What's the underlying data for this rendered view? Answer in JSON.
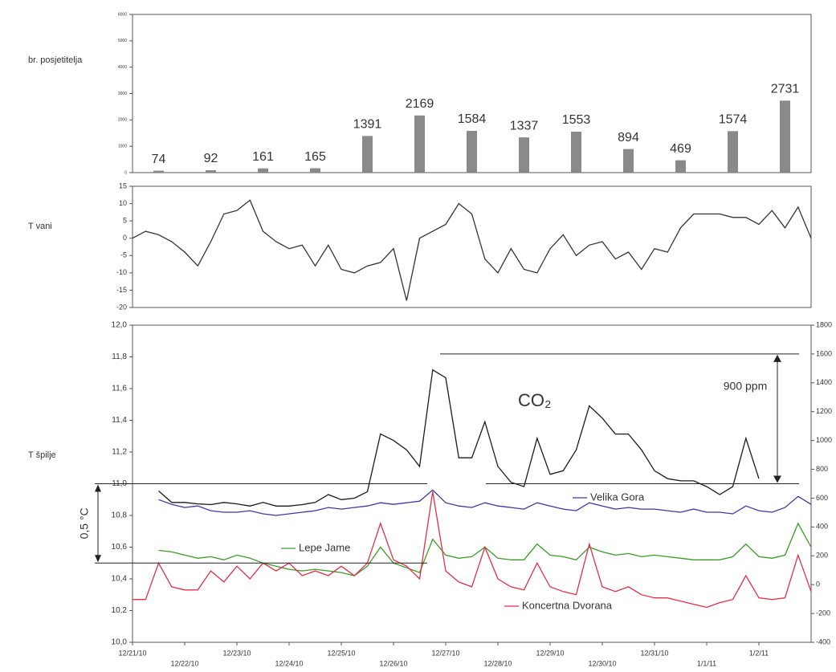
{
  "chart_data": [
    {
      "type": "bar",
      "ylabel": "br. posjetitelja",
      "color": "#8a8a8a",
      "x": [
        "2010-12-21T12:00",
        "2010-12-22T12:00",
        "2010-12-23T12:00",
        "2010-12-24T12:00",
        "2010-12-25T12:00",
        "2010-12-26T12:00",
        "2010-12-27T12:00",
        "2010-12-28T12:00",
        "2010-12-29T12:00",
        "2010-12-30T12:00",
        "2010-12-31T12:00",
        "2011-01-01T12:00",
        "2011-01-02T12:00"
      ],
      "values": [
        74,
        92,
        161,
        165,
        1391,
        2169,
        1584,
        1337,
        1553,
        894,
        469,
        1574,
        2731
      ],
      "xlim": [
        "2010-12-21T00:00",
        "2011-01-03T00:00"
      ],
      "ylim": [
        0,
        6000
      ],
      "yticks": [
        0,
        1000,
        2000,
        3000,
        4000,
        5000,
        6000
      ]
    },
    {
      "type": "line",
      "ylabel": "T vani",
      "x": [
        "2010-12-21T00:00",
        "2010-12-21T06:00",
        "2010-12-21T12:00",
        "2010-12-21T18:00",
        "2010-12-22T00:00",
        "2010-12-22T06:00",
        "2010-12-22T12:00",
        "2010-12-22T18:00",
        "2010-12-23T00:00",
        "2010-12-23T06:00",
        "2010-12-23T12:00",
        "2010-12-23T18:00",
        "2010-12-24T00:00",
        "2010-12-24T06:00",
        "2010-12-24T12:00",
        "2010-12-24T18:00",
        "2010-12-25T00:00",
        "2010-12-25T06:00",
        "2010-12-25T12:00",
        "2010-12-25T18:00",
        "2010-12-26T00:00",
        "2010-12-26T06:00",
        "2010-12-26T12:00",
        "2010-12-26T18:00",
        "2010-12-27T00:00",
        "2010-12-27T06:00",
        "2010-12-27T12:00",
        "2010-12-27T18:00",
        "2010-12-28T00:00",
        "2010-12-28T06:00",
        "2010-12-28T12:00",
        "2010-12-28T18:00",
        "2010-12-29T00:00",
        "2010-12-29T06:00",
        "2010-12-29T12:00",
        "2010-12-29T18:00",
        "2010-12-30T00:00",
        "2010-12-30T06:00",
        "2010-12-30T12:00",
        "2010-12-30T18:00",
        "2010-12-31T00:00",
        "2010-12-31T06:00",
        "2010-12-31T12:00",
        "2010-12-31T18:00",
        "2011-01-01T00:00",
        "2011-01-01T06:00",
        "2011-01-01T12:00",
        "2011-01-01T18:00",
        "2011-01-02T00:00",
        "2011-01-02T06:00",
        "2011-01-02T12:00",
        "2011-01-02T18:00",
        "2011-01-03T00:00"
      ],
      "series": [
        {
          "color": "#333333",
          "values": [
            0,
            2,
            1,
            -1,
            -4,
            -8,
            -1,
            7,
            8,
            11,
            2,
            -1,
            -3,
            -2,
            -8,
            -2,
            -9,
            -10,
            -8,
            -7,
            -3,
            -18,
            0,
            2,
            4,
            10,
            7,
            -6,
            -10,
            -3,
            -9,
            -10,
            -3,
            1,
            -5,
            -2,
            -1,
            -6,
            -4,
            -9,
            -3,
            -4,
            3,
            7,
            7,
            7,
            6,
            6,
            4,
            8,
            3,
            9,
            0
          ]
        }
      ],
      "xlim": [
        "2010-12-21T00:00",
        "2011-01-03T00:00"
      ],
      "ylim": [
        -20,
        15
      ],
      "yticks": [
        -20,
        -15,
        -10,
        -5,
        0,
        5,
        10,
        15
      ]
    },
    {
      "type": "line",
      "ylabel": "T špilje",
      "x": [
        "2010-12-21T00:00",
        "2010-12-21T06:00",
        "2010-12-21T12:00",
        "2010-12-21T18:00",
        "2010-12-22T00:00",
        "2010-12-22T06:00",
        "2010-12-22T12:00",
        "2010-12-22T18:00",
        "2010-12-23T00:00",
        "2010-12-23T06:00",
        "2010-12-23T12:00",
        "2010-12-23T18:00",
        "2010-12-24T00:00",
        "2010-12-24T06:00",
        "2010-12-24T12:00",
        "2010-12-24T18:00",
        "2010-12-25T00:00",
        "2010-12-25T06:00",
        "2010-12-25T12:00",
        "2010-12-25T18:00",
        "2010-12-26T00:00",
        "2010-12-26T06:00",
        "2010-12-26T12:00",
        "2010-12-26T18:00",
        "2010-12-27T00:00",
        "2010-12-27T06:00",
        "2010-12-27T12:00",
        "2010-12-27T18:00",
        "2010-12-28T00:00",
        "2010-12-28T06:00",
        "2010-12-28T12:00",
        "2010-12-28T18:00",
        "2010-12-29T00:00",
        "2010-12-29T06:00",
        "2010-12-29T12:00",
        "2010-12-29T18:00",
        "2010-12-30T00:00",
        "2010-12-30T06:00",
        "2010-12-30T12:00",
        "2010-12-30T18:00",
        "2010-12-31T00:00",
        "2010-12-31T06:00",
        "2010-12-31T12:00",
        "2010-12-31T18:00",
        "2011-01-01T00:00",
        "2011-01-01T06:00",
        "2011-01-01T12:00",
        "2011-01-01T18:00",
        "2011-01-02T00:00",
        "2011-01-02T06:00",
        "2011-01-02T12:00",
        "2011-01-02T18:00",
        "2011-01-03T00:00"
      ],
      "series": [
        {
          "name": "CO₂",
          "color": "#1a1a1a",
          "axis": "y2",
          "values": [
            null,
            null,
            650,
            570,
            570,
            560,
            555,
            570,
            560,
            545,
            570,
            545,
            545,
            555,
            570,
            625,
            590,
            600,
            645,
            1045,
            1000,
            935,
            820,
            1490,
            1435,
            880,
            880,
            1130,
            820,
            710,
            680,
            1015,
            765,
            790,
            935,
            1240,
            1155,
            1045,
            1045,
            935,
            790,
            735,
            720,
            720,
            680,
            625,
            680,
            1015,
            735,
            null,
            null,
            null,
            null
          ]
        },
        {
          "name": "Velika Gora",
          "color": "#3a3aa0",
          "values": [
            null,
            null,
            10.9,
            10.87,
            10.85,
            10.86,
            10.83,
            10.82,
            10.82,
            10.83,
            10.81,
            10.8,
            10.81,
            10.82,
            10.83,
            10.85,
            10.84,
            10.85,
            10.86,
            10.88,
            10.87,
            10.88,
            10.89,
            10.96,
            10.88,
            10.86,
            10.85,
            10.88,
            10.86,
            10.85,
            10.84,
            10.88,
            10.86,
            10.84,
            10.83,
            10.88,
            10.86,
            10.84,
            10.85,
            10.84,
            10.84,
            10.83,
            10.82,
            10.84,
            10.82,
            10.82,
            10.81,
            10.86,
            10.83,
            10.82,
            10.85,
            10.92,
            10.87
          ]
        },
        {
          "name": "Lepe Jame",
          "color": "#3c9a2a",
          "values": [
            null,
            null,
            10.58,
            10.57,
            10.55,
            10.53,
            10.54,
            10.52,
            10.55,
            10.53,
            10.5,
            10.48,
            10.46,
            10.45,
            10.46,
            10.45,
            10.44,
            10.42,
            10.48,
            10.6,
            10.5,
            10.47,
            10.44,
            10.65,
            10.55,
            10.53,
            10.54,
            10.6,
            10.53,
            10.52,
            10.52,
            10.62,
            10.55,
            10.54,
            10.52,
            10.6,
            10.57,
            10.55,
            10.56,
            10.54,
            10.55,
            10.54,
            10.53,
            10.52,
            10.52,
            10.52,
            10.54,
            10.62,
            10.54,
            10.53,
            10.55,
            10.75,
            10.6
          ]
        },
        {
          "name": "Koncertna Dvorana",
          "color": "#e0304a",
          "values": [
            10.27,
            10.27,
            10.5,
            10.35,
            10.33,
            10.33,
            10.45,
            10.38,
            10.48,
            10.4,
            10.5,
            10.45,
            10.5,
            10.42,
            10.45,
            10.42,
            10.48,
            10.42,
            10.5,
            10.75,
            10.52,
            10.48,
            10.4,
            10.95,
            10.45,
            10.38,
            10.35,
            10.6,
            10.4,
            10.35,
            10.33,
            10.5,
            10.35,
            10.32,
            10.3,
            10.62,
            10.35,
            10.32,
            10.35,
            10.3,
            10.28,
            10.28,
            10.26,
            10.24,
            10.22,
            10.25,
            10.27,
            10.42,
            10.28,
            10.27,
            10.28,
            10.55,
            10.32
          ]
        }
      ],
      "xlim": [
        "2010-12-21T00:00",
        "2011-01-03T00:00"
      ],
      "xticks": [
        {
          "value": "2010-12-21T00:00",
          "label": "12/21/10"
        },
        {
          "value": "2010-12-22T00:00",
          "label": "12/22/10"
        },
        {
          "value": "2010-12-23T00:00",
          "label": "12/23/10"
        },
        {
          "value": "2010-12-24T00:00",
          "label": "12/24/10"
        },
        {
          "value": "2010-12-25T00:00",
          "label": "12/25/10"
        },
        {
          "value": "2010-12-26T00:00",
          "label": "12/26/10"
        },
        {
          "value": "2010-12-27T00:00",
          "label": "12/27/10"
        },
        {
          "value": "2010-12-28T00:00",
          "label": "12/28/10"
        },
        {
          "value": "2010-12-29T00:00",
          "label": "12/29/10"
        },
        {
          "value": "2010-12-30T00:00",
          "label": "12/30/10"
        },
        {
          "value": "2010-12-31T00:00",
          "label": "12/31/10"
        },
        {
          "value": "2011-01-01T00:00",
          "label": "1/1/11"
        },
        {
          "value": "2011-01-02T00:00",
          "label": "1/2/11"
        }
      ],
      "ylim": [
        10.0,
        12.0
      ],
      "yticks": [
        {
          "value": 10.0,
          "label": "10,0"
        },
        {
          "value": 10.2,
          "label": "10,2"
        },
        {
          "value": 10.4,
          "label": "10,4"
        },
        {
          "value": 10.6,
          "label": "10,6"
        },
        {
          "value": 10.8,
          "label": "10,8"
        },
        {
          "value": 11.0,
          "label": "11,0"
        },
        {
          "value": 11.2,
          "label": "11,2"
        },
        {
          "value": 11.4,
          "label": "11,4"
        },
        {
          "value": 11.6,
          "label": "11,6"
        },
        {
          "value": 11.8,
          "label": "11,8"
        },
        {
          "value": 12.0,
          "label": "12,0"
        }
      ],
      "y2lim": [
        -400,
        1800
      ],
      "y2ticks": [
        -400,
        -200,
        0,
        200,
        400,
        600,
        800,
        1000,
        1200,
        1400,
        1600,
        1800
      ],
      "annotations": [
        {
          "text": "900 ppm",
          "axis": "y2",
          "range": [
            700,
            1600
          ]
        },
        {
          "text": "0,5 °C",
          "axis": "y",
          "range": [
            10.5,
            11.0
          ]
        }
      ]
    }
  ]
}
